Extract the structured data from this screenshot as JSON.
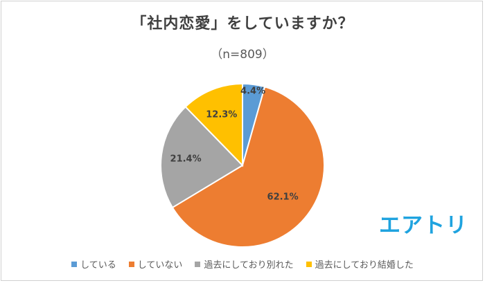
{
  "chart_data": {
    "type": "pie",
    "title": "「社内恋愛」をしていますか？",
    "subtitle": "（n=809）",
    "categories": [
      "している",
      "していない",
      "過去にしており別れた",
      "過去にしており結婚した"
    ],
    "values": [
      4.4,
      62.1,
      21.4,
      12.3
    ],
    "labels": [
      "4.4%",
      "62.1%",
      "21.4%",
      "12.3%"
    ],
    "colors": [
      "#5b9bd5",
      "#ed7d31",
      "#a5a5a5",
      "#ffc000"
    ],
    "start": "12 o'clock",
    "direction": "clockwise",
    "legend_position": "bottom"
  },
  "logo": {
    "text": "エアトリ",
    "color": "#1fa3df"
  }
}
